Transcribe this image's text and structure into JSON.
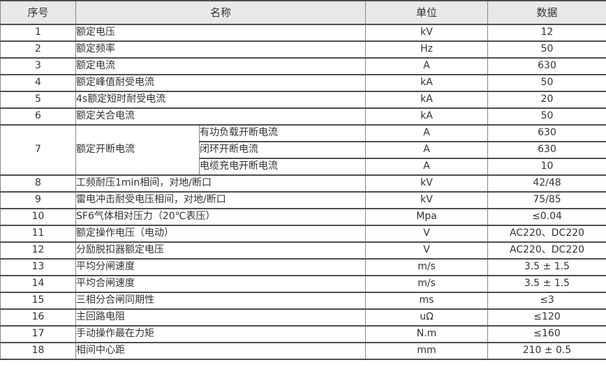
{
  "table": {
    "headers": {
      "no": "序号",
      "name": "名称",
      "unit": "单位",
      "data": "数据"
    },
    "rows": [
      {
        "no": "1",
        "name": "额定电压",
        "unit": "kV",
        "data": "12"
      },
      {
        "no": "2",
        "name": "额定频率",
        "unit": "Hz",
        "data": "50"
      },
      {
        "no": "3",
        "name": "额定电流",
        "unit": "A",
        "data": "630"
      },
      {
        "no": "4",
        "name": "额定峰值耐受电流",
        "unit": "kA",
        "data": "50"
      },
      {
        "no": "5",
        "name": "4s额定短时耐受电流",
        "unit": "kA",
        "data": "20"
      },
      {
        "no": "6",
        "name": "额定关合电流",
        "unit": "kA",
        "data": "50"
      },
      {
        "no": "7",
        "name": "额定开断电流",
        "subrows": [
          {
            "name": "有功负载开断电流",
            "unit": "A",
            "data": "630"
          },
          {
            "name": "闭环开断电流",
            "unit": "A",
            "data": "630"
          },
          {
            "name": "电缆充电开断电流",
            "unit": "A",
            "data": "10"
          }
        ]
      },
      {
        "no": "8",
        "name": "工频耐压1min相间，对地/断口",
        "unit": "kV",
        "data": "42/48"
      },
      {
        "no": "9",
        "name": "雷电冲击耐受电压相间，对地/断口",
        "unit": "kV",
        "data": "75/85"
      },
      {
        "no": "10",
        "name": "SF6气体相对压力（20℃表压）",
        "unit": "Mpa",
        "data": "≤0.04"
      },
      {
        "no": "11",
        "name": "额定操作电压（电动）",
        "unit": "V",
        "data": "AC220、DC220"
      },
      {
        "no": "12",
        "name": "分励脱扣器额定电压",
        "unit": "V",
        "data": "AC220、DC220"
      },
      {
        "no": "13",
        "name": "平均分闸速度",
        "unit": "m/s",
        "data": "3.5 ± 1.5"
      },
      {
        "no": "14",
        "name": "平均合闸速度",
        "unit": "m/s",
        "data": "3.5 ± 1.5"
      },
      {
        "no": "15",
        "name": "三相分合闸同期性",
        "unit": "ms",
        "data": "≤3"
      },
      {
        "no": "16",
        "name": "主回路电阻",
        "unit": "uΩ",
        "data": "≤120"
      },
      {
        "no": "17",
        "name": "手动操作最在力矩",
        "unit": "N.m",
        "data": "≤160"
      },
      {
        "no": "18",
        "name": "相间中心距",
        "unit": "mm",
        "data": "210 ± 0.5"
      }
    ],
    "colors": {
      "header_bg": "#e8e8e8",
      "border_dark": "#4f4f4f",
      "border_light": "#858585",
      "text": "#333333",
      "row_bg": "#ffffff"
    }
  }
}
